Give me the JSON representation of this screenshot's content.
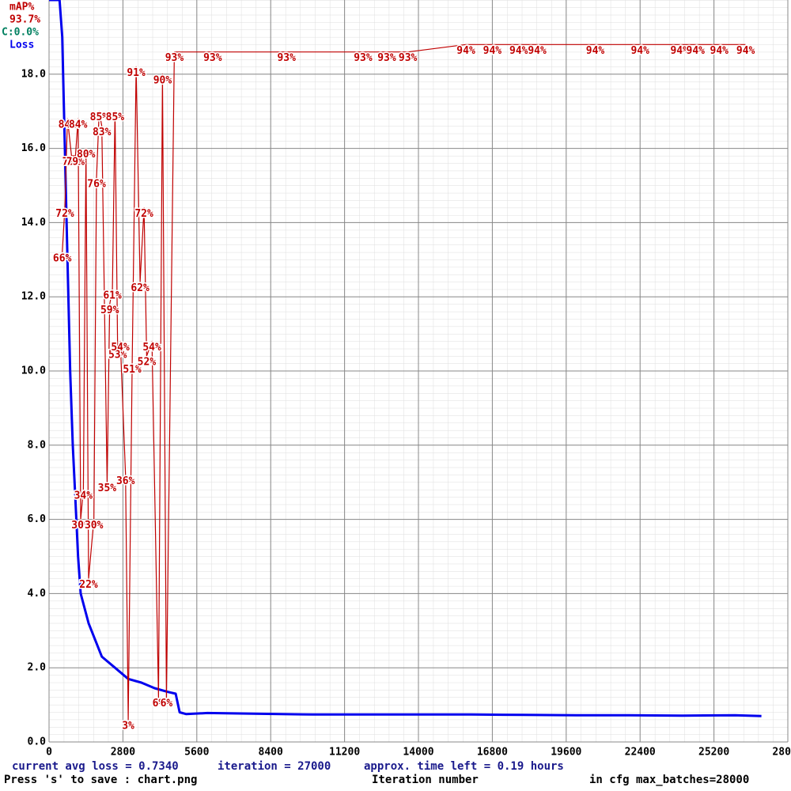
{
  "chart_data": {
    "type": "line",
    "xlabel": "Iteration number",
    "xlim": [
      0,
      28000
    ],
    "xticks": [
      0,
      2800,
      5600,
      8400,
      11200,
      14000,
      16800,
      19600,
      22400,
      25200,
      28000
    ],
    "ylim": [
      0,
      20
    ],
    "yticks": [
      {
        "value": 0,
        "label": "0.0"
      },
      {
        "value": 2,
        "label": "2.0"
      },
      {
        "value": 4,
        "label": "4.0"
      },
      {
        "value": 6,
        "label": "6.0"
      },
      {
        "value": 8,
        "label": "8.0"
      },
      {
        "value": 10,
        "label": "10.0"
      },
      {
        "value": 12,
        "label": "12.0"
      },
      {
        "value": 14,
        "label": "14.0"
      },
      {
        "value": 16,
        "label": "16.0"
      },
      {
        "value": 18,
        "label": "18.0"
      }
    ],
    "y2lim": [
      0,
      100
    ],
    "grid": true,
    "series": [
      {
        "name": "Loss",
        "color": "#0000ee",
        "x": [
          0,
          400,
          500,
          600,
          700,
          800,
          900,
          1000,
          1100,
          1200,
          1500,
          2000,
          2500,
          3000,
          3500,
          4000,
          4500,
          4800,
          4950,
          5200,
          6000,
          8000,
          10000,
          12000,
          14000,
          16000,
          18000,
          20000,
          22000,
          24000,
          26000,
          27000
        ],
        "values": [
          20,
          20,
          19,
          16,
          13,
          10,
          8,
          6.5,
          5,
          4,
          3.2,
          2.3,
          2,
          1.7,
          1.6,
          1.45,
          1.35,
          1.3,
          0.8,
          0.75,
          0.78,
          0.76,
          0.74,
          0.74,
          0.74,
          0.74,
          0.73,
          0.72,
          0.72,
          0.71,
          0.72,
          0.7
        ]
      },
      {
        "name": "mAP%",
        "color": "#c00000",
        "axis": "y2",
        "x": [
          500,
          600,
          700,
          850,
          1000,
          1100,
          1200,
          1300,
          1400,
          1500,
          1700,
          1800,
          1900,
          2000,
          2200,
          2300,
          2400,
          2500,
          2600,
          2700,
          2900,
          3000,
          3150,
          3300,
          3450,
          3600,
          3700,
          3900,
          4150,
          4300,
          4450,
          4750,
          6200,
          9000,
          11900,
          12800,
          13600,
          15800,
          16800,
          17800,
          18500,
          20700,
          22400,
          23900,
          24500,
          25400,
          26400
        ],
        "values": [
          66,
          72,
          84,
          79,
          79,
          84,
          30,
          34,
          80,
          22,
          30,
          76,
          85,
          83,
          35,
          59,
          61,
          85,
          53,
          54,
          36,
          3,
          51,
          91,
          62,
          72,
          52,
          54,
          6,
          90,
          6,
          93,
          93,
          93,
          93,
          93,
          93,
          94,
          94,
          94,
          94,
          94,
          94,
          94,
          94,
          94,
          94
        ],
        "value_labels": [
          "66%",
          "72%",
          "84%",
          "79%",
          "79%",
          "84%",
          "30%",
          "34%",
          "80%",
          "22%",
          "30%",
          "76%",
          "85%",
          "83%",
          "35%",
          "59%",
          "61%",
          "85%",
          "53%",
          "54%",
          "36%",
          "3%",
          "51%",
          "91%",
          "62%",
          "72%",
          "52%",
          "54%",
          "6%",
          "90%",
          "6%",
          "93%",
          "93%",
          "93%",
          "93%",
          "93%",
          "93%",
          "94%",
          "94%",
          "94%",
          "94%",
          "94%",
          "94%",
          "94%",
          "94%",
          "94%",
          "94%"
        ]
      }
    ],
    "current_map": "93.7%",
    "class_info": "C:0.0%",
    "status": {
      "avg_loss": "current avg loss = 0.7340",
      "iteration": "iteration = 27000",
      "time_left": "approx. time left = 0.19 hours",
      "save_hint": "Press 's' to save : chart.png",
      "max_batches": "in cfg max_batches=28000"
    }
  }
}
